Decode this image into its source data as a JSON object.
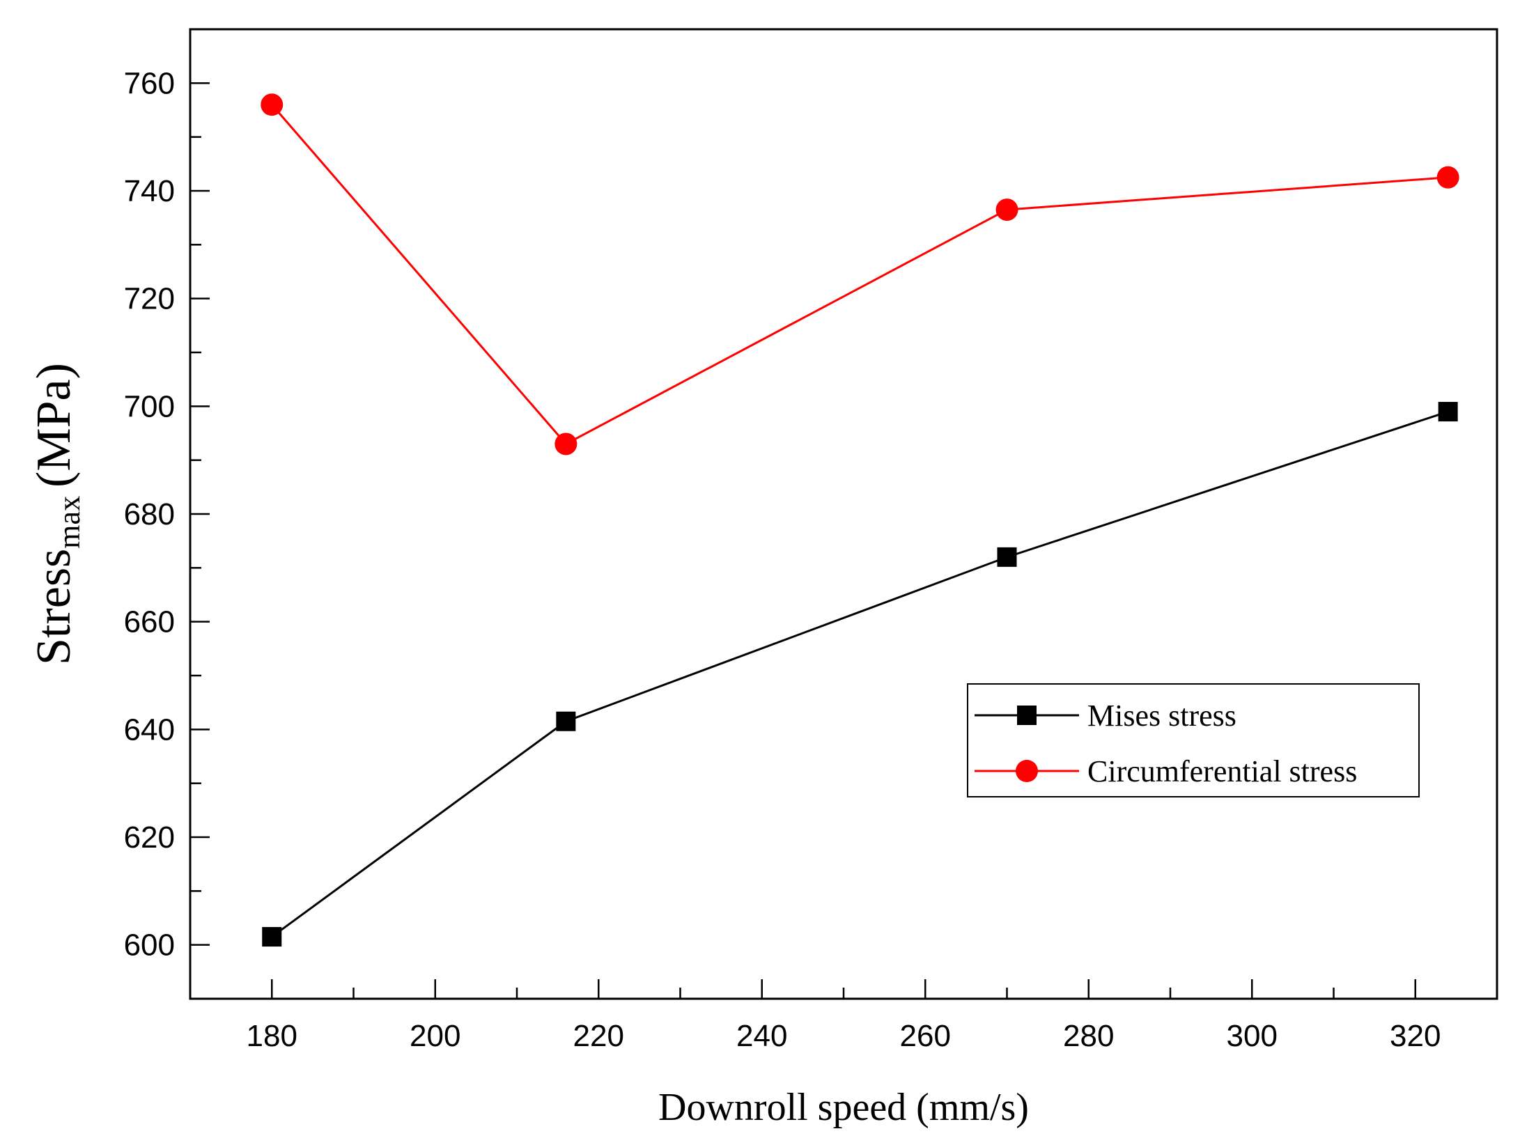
{
  "chart_data": {
    "type": "line",
    "title": "",
    "xlabel": "Downroll speed (mm/s)",
    "ylabel": {
      "main": "Stress",
      "subscript": "max",
      "unit": "(MPa)"
    },
    "xlim": [
      170,
      330
    ],
    "ylim": [
      590,
      770
    ],
    "x_ticks_major": [
      180,
      200,
      220,
      240,
      260,
      280,
      300,
      320
    ],
    "x_tick_labels": [
      "180",
      "200",
      "220",
      "240",
      "260",
      "280",
      "300",
      "320"
    ],
    "y_ticks_major": [
      600,
      620,
      640,
      660,
      680,
      700,
      720,
      740,
      760
    ],
    "y_tick_labels": [
      "600",
      "620",
      "640",
      "660",
      "680",
      "700",
      "720",
      "740",
      "760"
    ],
    "grid": false,
    "legend_position": "center-right",
    "series": [
      {
        "name": "Mises stress",
        "color": "#000000",
        "marker": "square",
        "x": [
          180,
          216,
          270,
          324
        ],
        "values": [
          601.5,
          641.5,
          672,
          699
        ]
      },
      {
        "name": "Circumferential stress",
        "color": "#ff0000",
        "marker": "circle",
        "x": [
          180,
          216,
          270,
          324
        ],
        "values": [
          756,
          693,
          736.5,
          742.5
        ]
      }
    ]
  }
}
